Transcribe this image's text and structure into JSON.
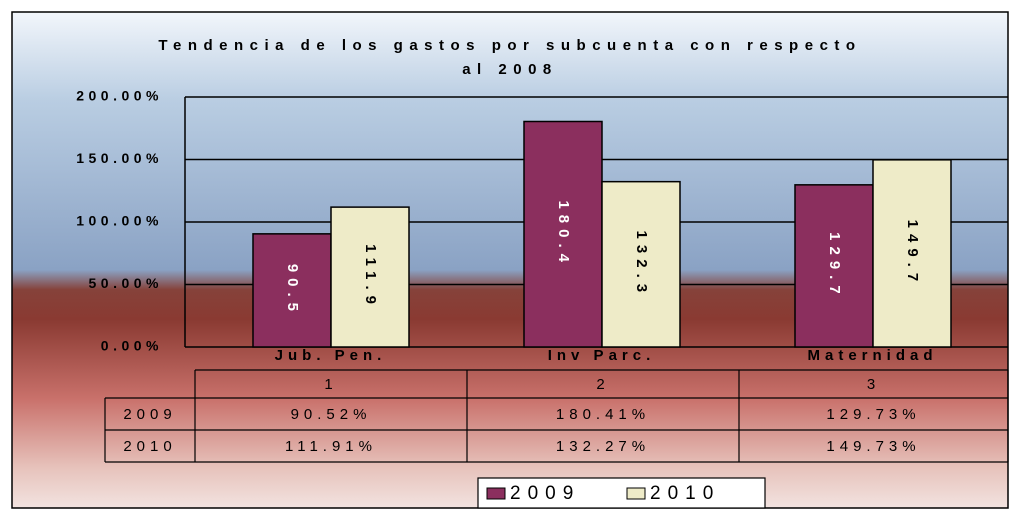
{
  "chart_data": {
    "type": "bar",
    "title": "Tendencia de los gastos por subcuenta con respecto al 2008",
    "categories": [
      "Jub. Pen.",
      "Inv Parc.",
      "Maternidad"
    ],
    "series": [
      {
        "name": "2009",
        "color": "#8b2f5e",
        "values": [
          90.52,
          180.41,
          129.73
        ],
        "value_labels": [
          "90.5",
          "180.4",
          "129.7"
        ]
      },
      {
        "name": "2010",
        "color": "#eeebc8",
        "values": [
          111.91,
          132.27,
          149.73
        ],
        "value_labels": [
          "111.9",
          "132.3",
          "149.7"
        ]
      }
    ],
    "ylim": [
      0,
      200
    ],
    "yticks": [
      {
        "value": 0,
        "label": "0.00%"
      },
      {
        "value": 50,
        "label": "50.00%"
      },
      {
        "value": 100,
        "label": "100.00%"
      },
      {
        "value": 150,
        "label": "150.00%"
      },
      {
        "value": 200,
        "label": "200.00%"
      }
    ],
    "grid": true,
    "table": {
      "columns": [
        "1",
        "2",
        "3"
      ],
      "rows": [
        [
          "2009",
          "90.52%",
          "180.41%",
          "129.73%"
        ],
        [
          "2010",
          "111.91%",
          "132.27%",
          "149.73%"
        ]
      ]
    },
    "legend": "bottom"
  }
}
